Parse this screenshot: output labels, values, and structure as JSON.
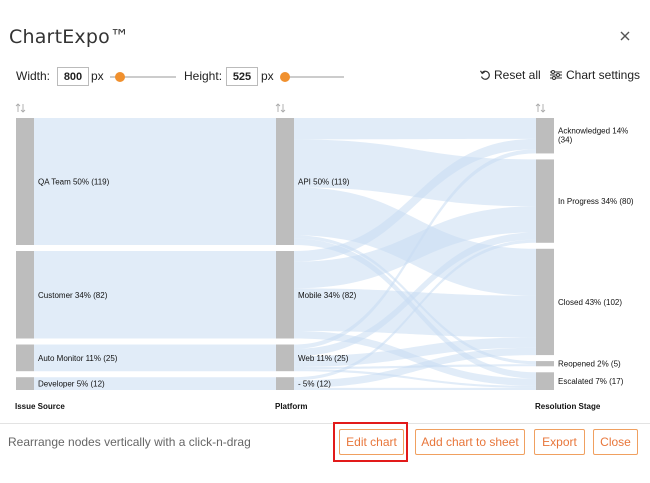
{
  "dialog": {
    "title": "ChartExpo™"
  },
  "toolbar": {
    "width_label": "Width:",
    "width_value": "800",
    "width_unit": "px",
    "width_slider_fraction": 0.15,
    "height_label": "Height:",
    "height_value": "525",
    "height_unit": "px",
    "height_slider_fraction": 0.05,
    "reset_label": "Reset all",
    "settings_label": "Chart settings"
  },
  "chart_data": {
    "type": "sankey",
    "columns": [
      "Issue Source",
      "Platform",
      "Resolution Stage"
    ],
    "nodes": [
      {
        "column": 0,
        "name": "QA Team",
        "percent": "50%",
        "value": 119,
        "label": "QA Team 50% (119)"
      },
      {
        "column": 0,
        "name": "Customer",
        "percent": "34%",
        "value": 82,
        "label": "Customer 34% (82)"
      },
      {
        "column": 0,
        "name": "Auto Monitor",
        "percent": "11%",
        "value": 25,
        "label": "Auto Monitor 11% (25)"
      },
      {
        "column": 0,
        "name": "Developer",
        "percent": "5%",
        "value": 12,
        "label": "Developer 5% (12)"
      },
      {
        "column": 1,
        "name": "API",
        "percent": "50%",
        "value": 119,
        "label": "API 50% (119)"
      },
      {
        "column": 1,
        "name": "Mobile",
        "percent": "34%",
        "value": 82,
        "label": "Mobile 34% (82)"
      },
      {
        "column": 1,
        "name": "Web",
        "percent": "11%",
        "value": 25,
        "label": "Web 11% (25)"
      },
      {
        "column": 1,
        "name": "-",
        "percent": "5%",
        "value": 12,
        "label": "- 5% (12)"
      },
      {
        "column": 2,
        "name": "Acknowledged",
        "percent": "14%",
        "value": 34,
        "label": "Acknowledged 14%",
        "label2": "(34)"
      },
      {
        "column": 2,
        "name": "In Progress",
        "percent": "34%",
        "value": 80,
        "label": "In Progress 34% (80)"
      },
      {
        "column": 2,
        "name": "Closed",
        "percent": "43%",
        "value": 102,
        "label": "Closed 43% (102)"
      },
      {
        "column": 2,
        "name": "Reopened",
        "percent": "2%",
        "value": 5,
        "label": "Reopened 2% (5)"
      },
      {
        "column": 2,
        "name": "Escalated",
        "percent": "7%",
        "value": 17,
        "label": "Escalated 7% (17)"
      }
    ],
    "links": [
      {
        "source": "QA Team",
        "target": "API",
        "value": 119
      },
      {
        "source": "Customer",
        "target": "Mobile",
        "value": 82
      },
      {
        "source": "Auto Monitor",
        "target": "Web",
        "value": 25
      },
      {
        "source": "Developer",
        "target": "-",
        "value": 12
      },
      {
        "source": "API",
        "target": "Acknowledged",
        "value": 20
      },
      {
        "source": "API",
        "target": "In Progress",
        "value": 45
      },
      {
        "source": "API",
        "target": "Closed",
        "value": 45
      },
      {
        "source": "API",
        "target": "Reopened",
        "value": 3
      },
      {
        "source": "API",
        "target": "Escalated",
        "value": 6
      },
      {
        "source": "Mobile",
        "target": "Acknowledged",
        "value": 10
      },
      {
        "source": "Mobile",
        "target": "In Progress",
        "value": 25
      },
      {
        "source": "Mobile",
        "target": "Closed",
        "value": 40
      },
      {
        "source": "Mobile",
        "target": "Escalated",
        "value": 7
      },
      {
        "source": "Web",
        "target": "Acknowledged",
        "value": 4
      },
      {
        "source": "Web",
        "target": "In Progress",
        "value": 7
      },
      {
        "source": "Web",
        "target": "Closed",
        "value": 10
      },
      {
        "source": "Web",
        "target": "Reopened",
        "value": 2
      },
      {
        "source": "Web",
        "target": "Escalated",
        "value": 2
      },
      {
        "source": "-",
        "target": "In Progress",
        "value": 3
      },
      {
        "source": "-",
        "target": "Closed",
        "value": 7
      },
      {
        "source": "-",
        "target": "Escalated",
        "value": 2
      }
    ],
    "node_color": "#bdbdbd",
    "link_color": "#c9dcf2"
  },
  "footer": {
    "hint": "Rearrange nodes vertically with a click-n-drag",
    "edit_label": "Edit chart",
    "add_label": "Add chart to sheet",
    "export_label": "Export",
    "close_label": "Close"
  },
  "colors": {
    "accent": "#e8763a",
    "accent_border": "#f0a060",
    "slider_knob": "#f0902e",
    "highlight": "#e21a1a"
  }
}
